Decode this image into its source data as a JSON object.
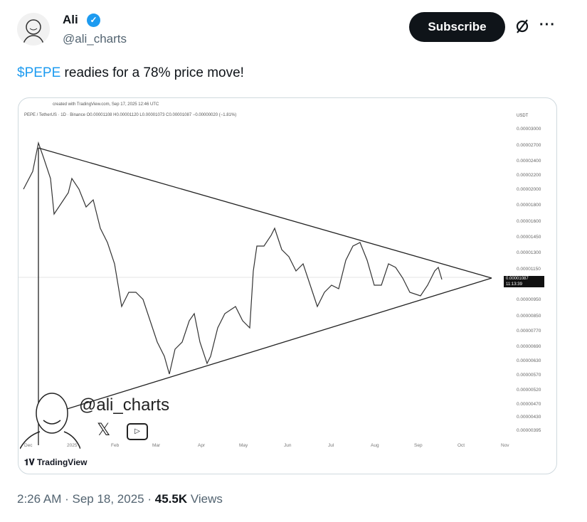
{
  "author": {
    "name": "Ali",
    "handle": "@ali_charts",
    "verified": true
  },
  "header": {
    "subscribe_label": "Subscribe",
    "more_label": "···",
    "grok_icon": "slashed-circle-icon"
  },
  "tweet": {
    "cashtag": "$PEPE",
    "text": " readies for a 78% price move!"
  },
  "chart_image": {
    "created_note": "created with TradingView.com, Sep 17, 2025 12:46 UTC",
    "symbol_line": "PEPE / TetherUS · 1D · Binance  O0.00001108  H0.00001120  L0.00001073  C0.00001087  −0.00000020 (−1.81%)",
    "currency": "USDT",
    "y_ticks": [
      "0.00003000",
      "0.00002700",
      "0.00002400",
      "0.00002200",
      "0.00002000",
      "0.00001800",
      "0.00001600",
      "0.00001450",
      "0.00001300",
      "0.00001150",
      "0.00000950",
      "0.00000850",
      "0.00000770",
      "0.00000690",
      "0.00000630",
      "0.00000570",
      "0.00000520",
      "0.00000470",
      "0.00000430",
      "0.00000395"
    ],
    "last_price": "0.00001087",
    "countdown": "11:13:39",
    "x_ticks": [
      "Dec",
      "2025",
      "Feb",
      "Mar",
      "Apr",
      "May",
      "Jun",
      "Jul",
      "Aug",
      "Sep",
      "Oct",
      "Nov"
    ],
    "watermark_handle": "@ali_charts",
    "brand": "TradingView"
  },
  "footer": {
    "time": "2:26 AM",
    "date": "Sep 18, 2025",
    "views": "45.5K",
    "views_label": "Views"
  }
}
